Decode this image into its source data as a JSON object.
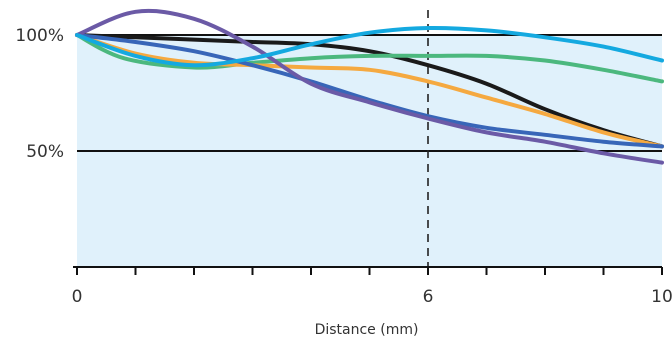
{
  "chart_data": {
    "type": "line",
    "title": "",
    "xlabel": "Distance (mm)",
    "ylabel": "",
    "xlim": [
      0,
      10
    ],
    "ylim": [
      0,
      1.0
    ],
    "x_ticks": [
      0,
      1,
      2,
      3,
      4,
      5,
      6,
      7,
      8,
      9,
      10
    ],
    "x_tick_labels": [
      {
        "x": 0,
        "label": "0"
      },
      {
        "x": 6,
        "label": "6"
      },
      {
        "x": 10,
        "label": "10"
      }
    ],
    "y_gridlines": [
      {
        "y": 1.0,
        "label": "100%"
      },
      {
        "y": 0.5,
        "label": "50%"
      }
    ],
    "reference_line_x": 6,
    "area_fill_top": 1.0,
    "colors": {
      "area_fill": "#e0f1fb",
      "grid": "#111111",
      "reference_line": "#222222"
    },
    "series": [
      {
        "color": "#1a1a1a",
        "points": [
          [
            0,
            1.0
          ],
          [
            1,
            0.99
          ],
          [
            2,
            0.98
          ],
          [
            3,
            0.97
          ],
          [
            4,
            0.96
          ],
          [
            5,
            0.93
          ],
          [
            6,
            0.87
          ],
          [
            7,
            0.79
          ],
          [
            8,
            0.68
          ],
          [
            9,
            0.59
          ],
          [
            10,
            0.52
          ]
        ]
      },
      {
        "color": "#4cb87e",
        "points": [
          [
            0,
            1.0
          ],
          [
            0.8,
            0.9
          ],
          [
            2,
            0.86
          ],
          [
            3,
            0.88
          ],
          [
            4,
            0.9
          ],
          [
            5,
            0.91
          ],
          [
            6,
            0.91
          ],
          [
            7,
            0.91
          ],
          [
            8,
            0.89
          ],
          [
            9,
            0.85
          ],
          [
            10,
            0.8
          ]
        ]
      },
      {
        "color": "#f5a940",
        "points": [
          [
            0,
            1.0
          ],
          [
            1,
            0.92
          ],
          [
            2,
            0.88
          ],
          [
            3,
            0.87
          ],
          [
            4,
            0.86
          ],
          [
            5,
            0.85
          ],
          [
            6,
            0.8
          ],
          [
            7,
            0.73
          ],
          [
            8,
            0.66
          ],
          [
            9,
            0.58
          ],
          [
            10,
            0.52
          ]
        ]
      },
      {
        "color": "#3866b8",
        "points": [
          [
            0,
            1.0
          ],
          [
            1,
            0.97
          ],
          [
            2,
            0.93
          ],
          [
            3,
            0.87
          ],
          [
            4,
            0.8
          ],
          [
            5,
            0.72
          ],
          [
            6,
            0.65
          ],
          [
            7,
            0.6
          ],
          [
            8,
            0.57
          ],
          [
            9,
            0.54
          ],
          [
            10,
            0.52
          ]
        ]
      },
      {
        "color": "#6b5aa6",
        "points": [
          [
            0,
            1.0
          ],
          [
            1,
            1.1
          ],
          [
            2,
            1.07
          ],
          [
            3,
            0.95
          ],
          [
            4,
            0.79
          ],
          [
            5,
            0.71
          ],
          [
            6,
            0.64
          ],
          [
            7,
            0.58
          ],
          [
            8,
            0.54
          ],
          [
            9,
            0.49
          ],
          [
            10,
            0.45
          ]
        ]
      },
      {
        "color": "#14a9e0",
        "points": [
          [
            0,
            1.0
          ],
          [
            1,
            0.91
          ],
          [
            2,
            0.87
          ],
          [
            3,
            0.9
          ],
          [
            4,
            0.96
          ],
          [
            5,
            1.01
          ],
          [
            6,
            1.03
          ],
          [
            7,
            1.02
          ],
          [
            8,
            0.99
          ],
          [
            9,
            0.95
          ],
          [
            10,
            0.89
          ]
        ]
      }
    ]
  }
}
